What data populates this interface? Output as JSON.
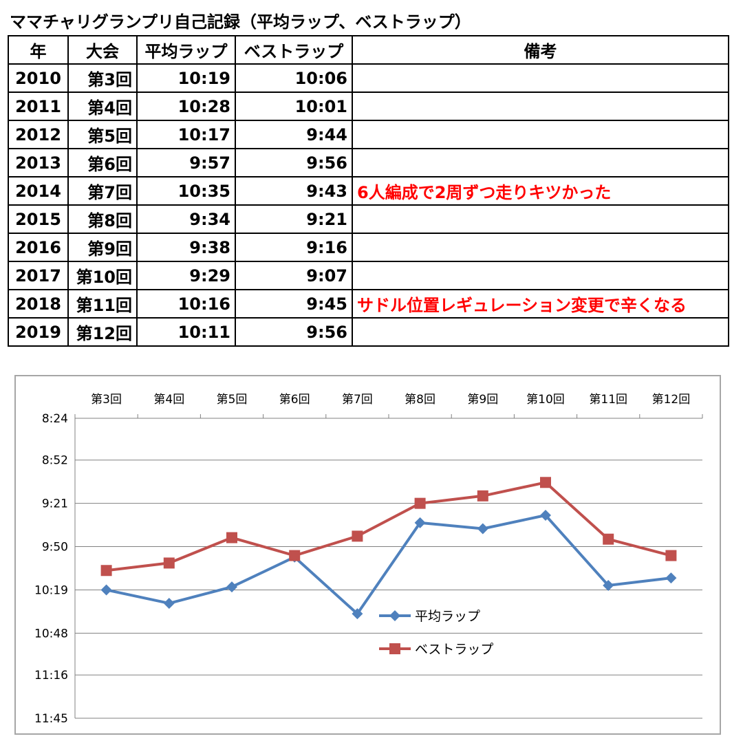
{
  "title": "ママチャリグランプリ自己記録（平均ラップ、ベストラップ）",
  "table": {
    "headers": [
      "年",
      "大会",
      "平均ラップ",
      "ベストラップ",
      "備考"
    ],
    "rows": [
      {
        "year": "2010",
        "event": "第3回",
        "avg": "10:19",
        "best": "10:06",
        "note": ""
      },
      {
        "year": "2011",
        "event": "第4回",
        "avg": "10:28",
        "best": "10:01",
        "note": ""
      },
      {
        "year": "2012",
        "event": "第5回",
        "avg": "10:17",
        "best": "9:44",
        "note": ""
      },
      {
        "year": "2013",
        "event": "第6回",
        "avg": "9:57",
        "best": "9:56",
        "note": ""
      },
      {
        "year": "2014",
        "event": "第7回",
        "avg": "10:35",
        "best": "9:43",
        "note": "6人編成で2周ずつ走りキツかった"
      },
      {
        "year": "2015",
        "event": "第8回",
        "avg": "9:34",
        "best": "9:21",
        "note": ""
      },
      {
        "year": "2016",
        "event": "第9回",
        "avg": "9:38",
        "best": "9:16",
        "note": ""
      },
      {
        "year": "2017",
        "event": "第10回",
        "avg": "9:29",
        "best": "9:07",
        "note": ""
      },
      {
        "year": "2018",
        "event": "第11回",
        "avg": "10:16",
        "best": "9:45",
        "note": "サドル位置レギュレーション変更で辛くなる"
      },
      {
        "year": "2019",
        "event": "第12回",
        "avg": "10:11",
        "best": "9:56",
        "note": ""
      }
    ]
  },
  "chart_data": {
    "type": "line",
    "categories": [
      "第3回",
      "第4回",
      "第5回",
      "第6回",
      "第7回",
      "第8回",
      "第9回",
      "第10回",
      "第11回",
      "第12回"
    ],
    "y_ticks": [
      "8:24",
      "8:52",
      "9:21",
      "9:50",
      "10:19",
      "10:48",
      "11:16",
      "11:45"
    ],
    "y_inverted": true,
    "ylim": [
      "8:24",
      "11:45"
    ],
    "x_axis_position": "top",
    "grid": true,
    "legend_position": "center",
    "series": [
      {
        "name": "平均ラップ",
        "color": "#4f81bd",
        "marker": "diamond",
        "values": [
          "10:19",
          "10:28",
          "10:17",
          "9:57",
          "10:35",
          "9:34",
          "9:38",
          "9:29",
          "10:16",
          "10:11"
        ]
      },
      {
        "name": "ベストラップ",
        "color": "#c0504d",
        "marker": "square",
        "values": [
          "10:06",
          "10:01",
          "9:44",
          "9:56",
          "9:43",
          "9:21",
          "9:16",
          "9:07",
          "9:45",
          "9:56"
        ]
      }
    ]
  }
}
